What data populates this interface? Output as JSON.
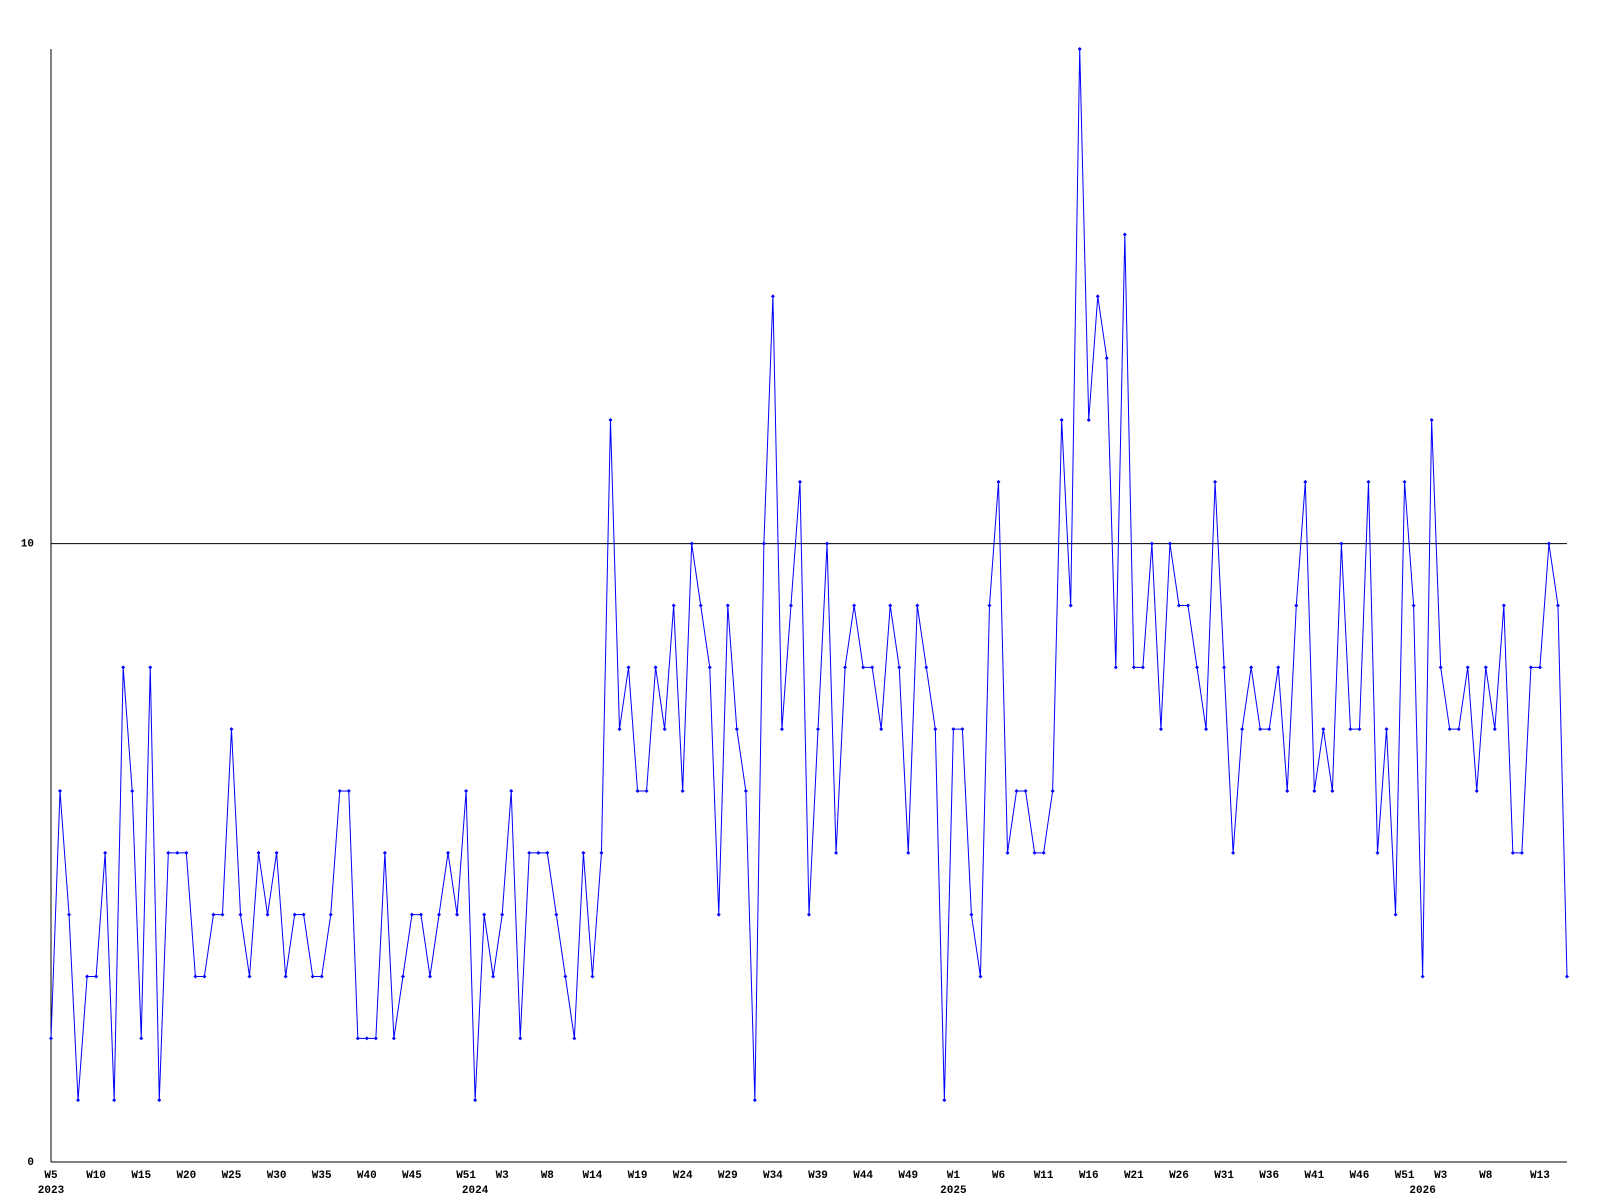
{
  "chart_data": {
    "type": "line",
    "categories": [
      "W5",
      null,
      null,
      null,
      null,
      "W10",
      null,
      null,
      null,
      null,
      "W15",
      null,
      null,
      null,
      null,
      "W20",
      null,
      null,
      null,
      null,
      "W25",
      null,
      null,
      null,
      null,
      "W30",
      null,
      null,
      null,
      null,
      "W35",
      null,
      null,
      null,
      null,
      "W40",
      null,
      null,
      null,
      null,
      "W45",
      null,
      null,
      null,
      null,
      null,
      "W51",
      null,
      null,
      null,
      "W3",
      null,
      null,
      null,
      null,
      "W8",
      null,
      null,
      null,
      null,
      "W14",
      null,
      null,
      null,
      null,
      "W19",
      null,
      null,
      null,
      null,
      "W24",
      null,
      null,
      null,
      null,
      "W29",
      null,
      null,
      null,
      null,
      "W34",
      null,
      null,
      null,
      null,
      "W39",
      null,
      null,
      null,
      null,
      "W44",
      null,
      null,
      null,
      null,
      "W49",
      null,
      null,
      null,
      null,
      "W1",
      null,
      null,
      null,
      null,
      "W6",
      null,
      null,
      null,
      null,
      "W11",
      null,
      null,
      null,
      null,
      "W16",
      null,
      null,
      null,
      null,
      "W21",
      null,
      null,
      null,
      null,
      "W26",
      null,
      null,
      null,
      null,
      "W31",
      null,
      null,
      null,
      null,
      "W36",
      null,
      null,
      null,
      null,
      "W41",
      null,
      null,
      null,
      null,
      "W46",
      null,
      null,
      null,
      null,
      "W51",
      null,
      null,
      null,
      "W3",
      null,
      null,
      null,
      null,
      "W8",
      null,
      null,
      null,
      null,
      null,
      "W13",
      null,
      null,
      null
    ],
    "years": [
      "2023",
      null,
      null,
      null,
      null,
      null,
      null,
      null,
      null,
      null,
      null,
      null,
      null,
      null,
      null,
      null,
      null,
      null,
      null,
      null,
      null,
      null,
      null,
      null,
      null,
      null,
      null,
      null,
      null,
      null,
      null,
      null,
      null,
      null,
      null,
      null,
      null,
      null,
      null,
      null,
      null,
      null,
      null,
      null,
      null,
      null,
      null,
      "2024",
      null,
      null,
      null,
      null,
      null,
      null,
      null,
      null,
      null,
      null,
      null,
      null,
      null,
      null,
      null,
      null,
      null,
      null,
      null,
      null,
      null,
      null,
      null,
      null,
      null,
      null,
      null,
      null,
      null,
      null,
      null,
      null,
      null,
      null,
      null,
      null,
      null,
      null,
      null,
      null,
      null,
      null,
      null,
      null,
      null,
      null,
      null,
      null,
      null,
      null,
      null,
      null,
      "2025",
      null,
      null,
      null,
      null,
      null,
      null,
      null,
      null,
      null,
      null,
      null,
      null,
      null,
      null,
      null,
      null,
      null,
      null,
      null,
      null,
      null,
      null,
      null,
      null,
      null,
      null,
      null,
      null,
      null,
      null,
      null,
      null,
      null,
      null,
      null,
      null,
      null,
      null,
      null,
      null,
      null,
      null,
      null,
      null,
      null,
      null,
      null,
      null,
      null,
      null,
      null,
      "2026",
      null,
      null,
      null,
      null,
      null,
      null,
      null,
      null,
      null,
      null,
      null,
      null,
      null,
      null,
      null,
      null
    ],
    "series": [
      {
        "color": "#0000ff",
        "values": [
          2,
          6,
          4,
          1,
          3,
          3,
          5,
          1,
          8,
          6,
          2,
          8,
          1,
          5,
          5,
          5,
          3,
          3,
          4,
          4,
          7,
          4,
          3,
          5,
          4,
          5,
          3,
          4,
          4,
          3,
          3,
          4,
          6,
          6,
          2,
          2,
          2,
          5,
          2,
          3,
          4,
          4,
          3,
          4,
          5,
          4,
          6,
          1,
          4,
          3,
          4,
          6,
          2,
          5,
          5,
          5,
          4,
          3,
          2,
          5,
          3,
          5,
          12,
          7,
          8,
          6,
          6,
          8,
          7,
          9,
          6,
          10,
          9,
          8,
          4,
          9,
          7,
          6,
          1,
          10,
          14,
          7,
          9,
          11,
          4,
          7,
          10,
          5,
          8,
          9,
          8,
          8,
          7,
          9,
          8,
          5,
          9,
          8,
          7,
          1,
          7,
          7,
          4,
          3,
          9,
          11,
          5,
          6,
          6,
          5,
          5,
          6,
          12,
          9,
          18,
          12,
          14,
          13,
          8,
          15,
          8,
          8,
          10,
          7,
          10,
          9,
          9,
          8,
          7,
          11,
          8,
          5,
          7,
          8,
          7,
          7,
          8,
          6,
          9,
          11,
          6,
          7,
          6,
          10,
          7,
          7,
          11,
          5,
          7,
          4,
          11,
          9,
          3,
          12,
          8,
          7,
          7,
          8,
          6,
          8,
          7,
          9,
          5,
          5,
          8,
          8,
          10,
          9,
          3
        ]
      }
    ],
    "ylim": [
      0,
      18
    ],
    "yticks": [
      0,
      10
    ],
    "grid": true
  }
}
